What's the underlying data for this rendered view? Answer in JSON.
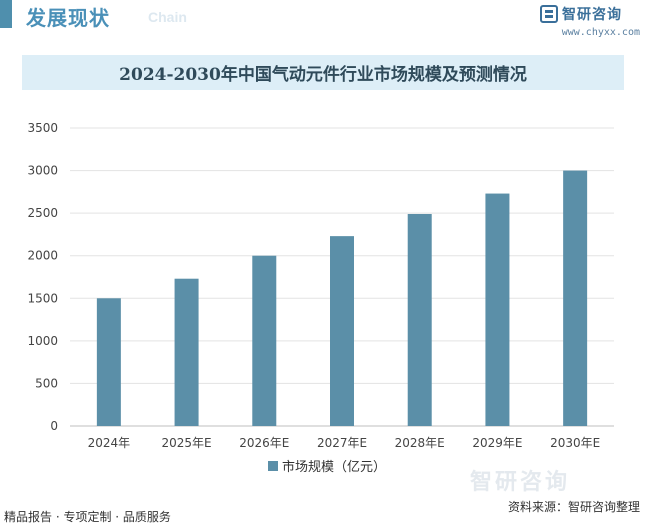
{
  "header": {
    "section_title": "发展现状",
    "section_subtitle": "Chain",
    "logo_text": "智研咨询",
    "site_url": "www.chyxx.com"
  },
  "footer": {
    "left_text": "精品报告 · 专项定制 · 品质服务",
    "source_text": "资料来源：智研咨询整理"
  },
  "watermark": {
    "text": "智研咨询"
  },
  "colors": {
    "bar": "#5b8fa8",
    "accent": "#4f8fad",
    "title_band": "#ddeef7"
  },
  "chart_data": {
    "type": "bar",
    "title": "2024-2030年中国气动元件行业市场规模及预测情况",
    "categories": [
      "2024年",
      "2025年E",
      "2026年E",
      "2027年E",
      "2028年E",
      "2029年E",
      "2030年E"
    ],
    "series": [
      {
        "name": "市场规模（亿元）",
        "values": [
          1500,
          1730,
          2000,
          2230,
          2490,
          2730,
          3000
        ]
      }
    ],
    "ylim": [
      0,
      3500
    ],
    "yticks": [
      0,
      500,
      1000,
      1500,
      2000,
      2500,
      3000,
      3500
    ],
    "grid": true,
    "legend": "bottom"
  }
}
